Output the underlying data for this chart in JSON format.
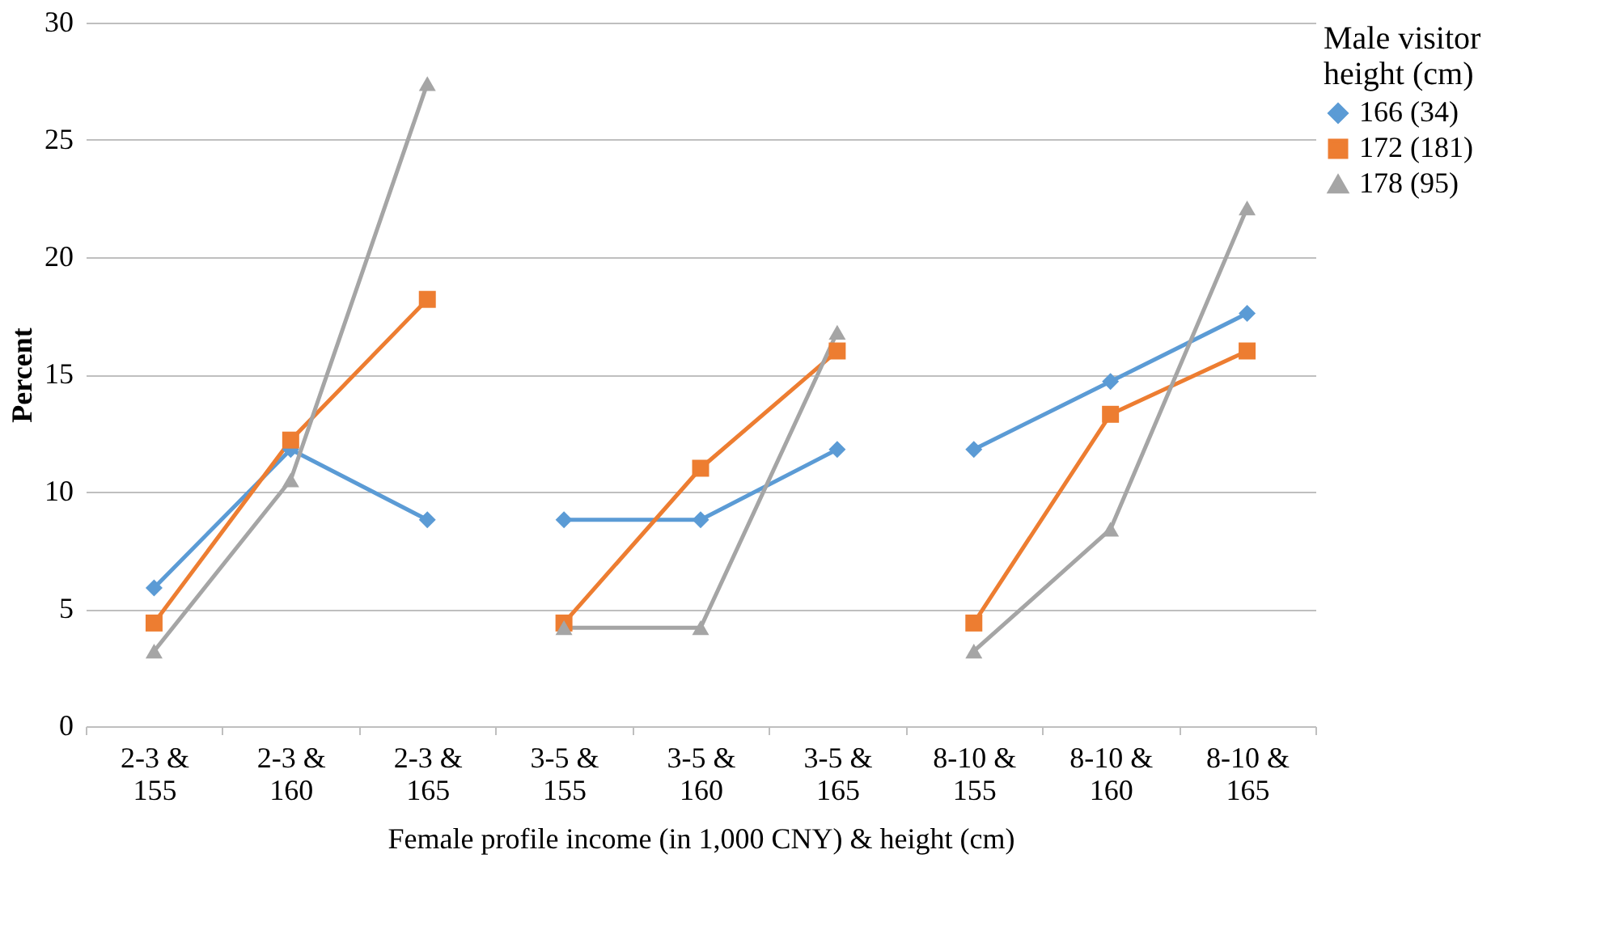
{
  "chart_data": {
    "type": "line",
    "xlabel": "Female profile income (in 1,000 CNY) & height (cm)",
    "ylabel": "Percent",
    "legend_title": "Male visitor height (cm)",
    "categories": [
      "2-3 & 155",
      "2-3 & 160",
      "2-3 & 165",
      "3-5 & 155",
      "3-5 & 160",
      "3-5 & 165",
      "8-10 & 155",
      "8-10 & 160",
      "8-10 & 165"
    ],
    "series": [
      {
        "name": "166 (34)",
        "color": "#5b9bd5",
        "marker": "diamond",
        "values": [
          5.9,
          11.8,
          8.8,
          8.8,
          8.8,
          11.8,
          11.8,
          14.7,
          17.6
        ]
      },
      {
        "name": "172 (181)",
        "color": "#ed7d31",
        "marker": "square",
        "values": [
          4.4,
          12.2,
          18.2,
          4.4,
          11.0,
          16.0,
          4.4,
          13.3,
          16.0
        ]
      },
      {
        "name": "178 (95)",
        "color": "#a5a5a5",
        "marker": "triangle",
        "values": [
          3.2,
          10.5,
          27.4,
          4.2,
          4.2,
          16.8,
          3.2,
          8.4,
          22.1
        ]
      }
    ],
    "ylim": [
      0,
      30
    ],
    "yticks": [
      0,
      5,
      10,
      15,
      20,
      25,
      30
    ],
    "grid": "y",
    "legend": "right",
    "line_style": "solid"
  }
}
